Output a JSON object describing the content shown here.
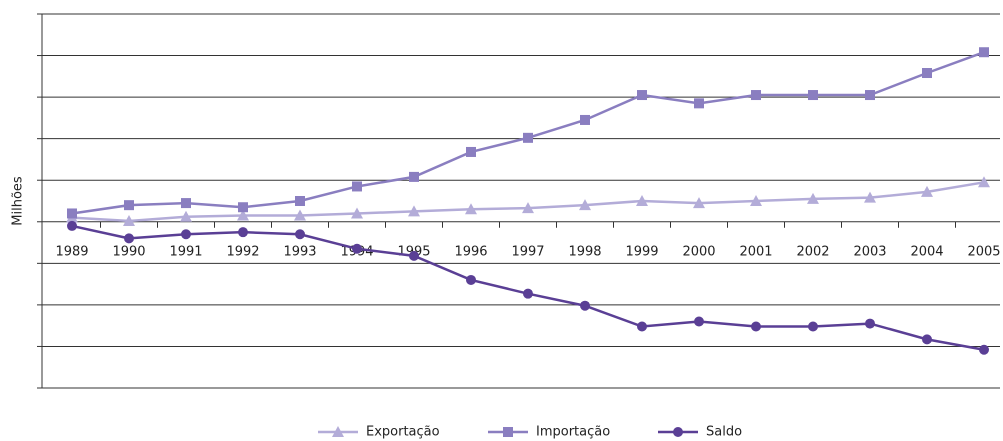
{
  "chart_data": {
    "type": "line",
    "y_label": "Milhões",
    "categories": [
      "1989",
      "1990",
      "1991",
      "1992",
      "1993",
      "1994",
      "1995",
      "1996",
      "1997",
      "1998",
      "1999",
      "2000",
      "2001",
      "2002",
      "2003",
      "2004",
      "2005"
    ],
    "series": [
      {
        "name": "Exportação",
        "color": "#b3acd8",
        "marker": "triangle",
        "values": [
          0.1,
          0.02,
          0.12,
          0.15,
          0.15,
          0.2,
          0.25,
          0.3,
          0.33,
          0.4,
          0.5,
          0.45,
          0.5,
          0.55,
          0.58,
          0.72,
          0.95
        ]
      },
      {
        "name": "Importação",
        "color": "#8a7ec0",
        "marker": "square",
        "values": [
          0.2,
          0.4,
          0.45,
          0.35,
          0.5,
          0.85,
          1.08,
          1.68,
          2.02,
          2.45,
          3.05,
          2.85,
          3.05,
          3.05,
          3.05,
          3.58,
          4.08
        ]
      },
      {
        "name": "Saldo",
        "color": "#5a3f95",
        "marker": "circle",
        "values": [
          -0.1,
          -0.4,
          -0.3,
          -0.25,
          -0.3,
          -0.65,
          -0.82,
          -1.4,
          -1.73,
          -2.02,
          -2.52,
          -2.4,
          -2.52,
          -2.52,
          -2.45,
          -2.83,
          -3.08
        ]
      }
    ],
    "ylim": [
      -4,
      5
    ],
    "yticks": [
      -4,
      -3,
      -2,
      -1,
      0,
      1,
      2,
      3,
      4,
      5
    ],
    "grid": true,
    "legend": "bottom"
  }
}
